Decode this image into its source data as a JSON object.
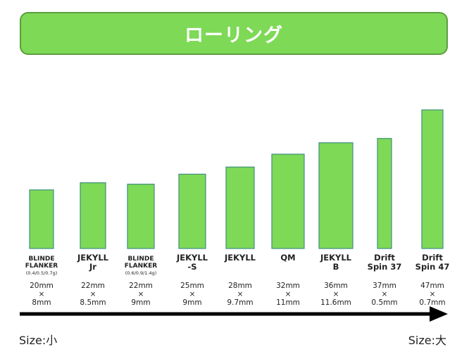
{
  "banner": {
    "title": "ローリング",
    "color": "#7ed957"
  },
  "axis": {
    "min_label": "Size:小",
    "max_label": "Size:大"
  },
  "bar_color": "#7ed957",
  "bar_stroke": "#3f8f7f",
  "chart_data": {
    "type": "bar",
    "ylim": [
      0,
      1
    ],
    "categories": [
      {
        "name": [
          "BLINDE",
          "FLANKER"
        ],
        "sub": "(0.4/0.5/0.7g)",
        "size": [
          "20mm",
          "×",
          "8mm"
        ]
      },
      {
        "name": [
          "JEKYLL",
          "Jr"
        ],
        "sub": "",
        "size": [
          "22mm",
          "×",
          "8.5mm"
        ]
      },
      {
        "name": [
          "BLINDE",
          "FLANKER"
        ],
        "sub": "(0.6/0.9/1.4g)",
        "size": [
          "22mm",
          "×",
          "9mm"
        ]
      },
      {
        "name": [
          "JEKYLL",
          "-S"
        ],
        "sub": "",
        "size": [
          "25mm",
          "×",
          "9mm"
        ]
      },
      {
        "name": [
          "JEKYLL"
        ],
        "sub": "",
        "size": [
          "28mm",
          "×",
          "9.7mm"
        ]
      },
      {
        "name": [
          "QM"
        ],
        "sub": "",
        "size": [
          "32mm",
          "×",
          "11mm"
        ]
      },
      {
        "name": [
          "JEKYLL",
          "B"
        ],
        "sub": "",
        "size": [
          "36mm",
          "×",
          "11.6mm"
        ]
      },
      {
        "name": [
          "Drift",
          "Spin 37"
        ],
        "sub": "",
        "size": [
          "37mm",
          "×",
          "0.5mm"
        ]
      },
      {
        "name": [
          "Drift",
          "Spin 47"
        ],
        "sub": "",
        "size": [
          "47mm",
          "×",
          "0.7mm"
        ]
      }
    ],
    "values": [
      0.41,
      0.46,
      0.45,
      0.52,
      0.57,
      0.66,
      0.74,
      0.77,
      0.97
    ]
  }
}
